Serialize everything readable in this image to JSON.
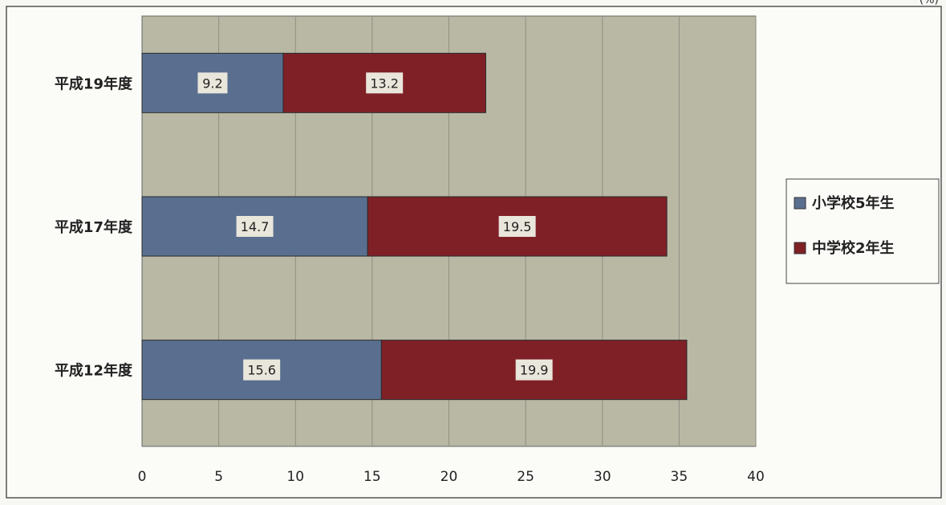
{
  "page": {
    "corner_mark": "(%)"
  },
  "colors": {
    "plot_bg": "#b8b8a4",
    "grid": "#8f8f84",
    "series1": "#5a6f8f",
    "series2": "#7f2027",
    "label_box": "#e9e6db"
  },
  "chart_data": {
    "type": "bar",
    "orientation": "horizontal",
    "stacked": true,
    "categories": [
      "平成19年度",
      "平成17年度",
      "平成12年度"
    ],
    "series": [
      {
        "name": "小学校5年生",
        "values": [
          9.2,
          14.7,
          15.6
        ]
      },
      {
        "name": "中学校2年生",
        "values": [
          13.2,
          19.5,
          19.9
        ]
      }
    ],
    "xlim": [
      0,
      40
    ],
    "xticks": [
      0,
      5,
      10,
      15,
      20,
      25,
      30,
      35,
      40
    ],
    "grid": "vertical",
    "legend": "right",
    "title": "",
    "xlabel": "",
    "ylabel": ""
  }
}
